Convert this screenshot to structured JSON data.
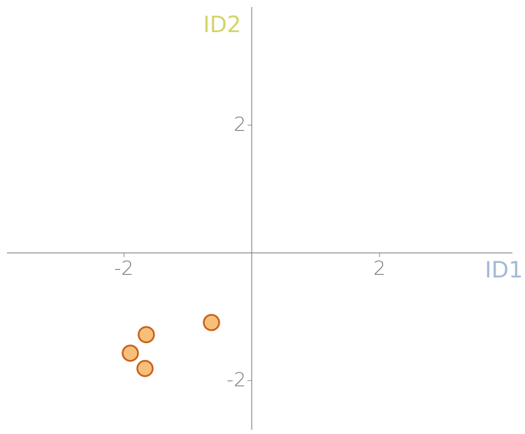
{
  "chart_data": {
    "type": "scatter",
    "x_label": "ID1",
    "y_label": "ID2",
    "x": [
      -0.63,
      -1.65,
      -1.9,
      -1.67
    ],
    "values": [
      -1.09,
      -1.28,
      -1.57,
      -1.81
    ],
    "color": "#f7c07a",
    "edge_color": "#c8601a",
    "x_label_color": "#a3b8d6",
    "y_label_color": "#d4d46a",
    "xlim": [
      -3.83,
      4.08
    ],
    "ylim": [
      -2.77,
      3.85
    ],
    "xticks": [
      -2,
      2
    ],
    "yticks": [
      -2,
      2
    ],
    "grid": false
  }
}
